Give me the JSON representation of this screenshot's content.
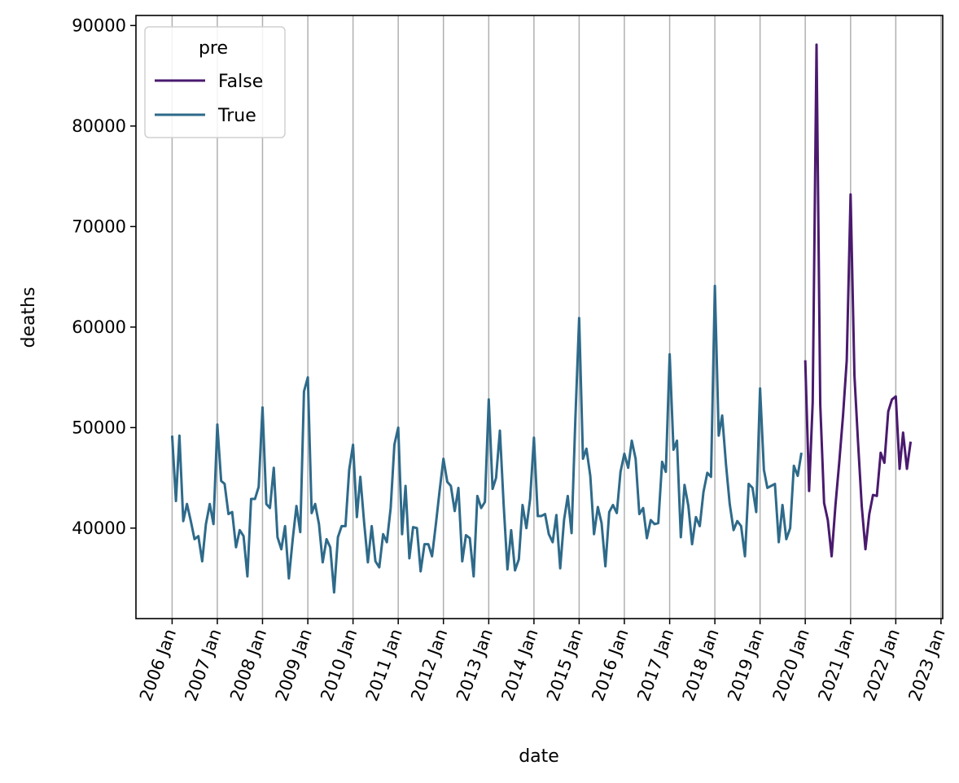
{
  "chart_data": {
    "type": "line",
    "xlabel": "date",
    "ylabel": "deaths",
    "xlim": [
      "2005-03-15",
      "2023-01-15"
    ],
    "ylim": [
      31000,
      91000
    ],
    "yticks": [
      40000,
      50000,
      60000,
      70000,
      80000,
      90000
    ],
    "xticks": [
      {
        "date": "2006-01-01",
        "label": "2006 Jan"
      },
      {
        "date": "2007-01-01",
        "label": "2007 Jan"
      },
      {
        "date": "2008-01-01",
        "label": "2008 Jan"
      },
      {
        "date": "2009-01-01",
        "label": "2009 Jan"
      },
      {
        "date": "2010-01-01",
        "label": "2010 Jan"
      },
      {
        "date": "2011-01-01",
        "label": "2011 Jan"
      },
      {
        "date": "2012-01-01",
        "label": "2012 Jan"
      },
      {
        "date": "2013-01-01",
        "label": "2013 Jan"
      },
      {
        "date": "2014-01-01",
        "label": "2014 Jan"
      },
      {
        "date": "2015-01-01",
        "label": "2015 Jan"
      },
      {
        "date": "2016-01-01",
        "label": "2016 Jan"
      },
      {
        "date": "2017-01-01",
        "label": "2017 Jan"
      },
      {
        "date": "2018-01-01",
        "label": "2018 Jan"
      },
      {
        "date": "2019-01-01",
        "label": "2019 Jan"
      },
      {
        "date": "2020-01-01",
        "label": "2020 Jan"
      },
      {
        "date": "2021-01-01",
        "label": "2021 Jan"
      },
      {
        "date": "2022-01-01",
        "label": "2022 Jan"
      },
      {
        "date": "2023-01-01",
        "label": "2023 Jan"
      }
    ],
    "x_grid": true,
    "y_grid": false,
    "legend": {
      "title": "pre",
      "placement": "upper-left"
    },
    "series": [
      {
        "name": "False",
        "color": "#4a1a6e",
        "start": "2020-01",
        "values": [
          56700,
          43700,
          52500,
          88100,
          52300,
          42500,
          40800,
          37200,
          42300,
          46500,
          51200,
          56700,
          73200,
          55200,
          48800,
          42200,
          37900,
          41400,
          43300,
          43200,
          47500,
          46500,
          51600,
          52800,
          53100,
          45900,
          49500,
          45900,
          48600
        ]
      },
      {
        "name": "True",
        "color": "#2e6a8a",
        "start": "2006-01",
        "values": [
          49200,
          42700,
          49200,
          40700,
          42400,
          40700,
          38900,
          39200,
          36700,
          40400,
          42400,
          40400,
          50300,
          44700,
          44400,
          41400,
          41600,
          38100,
          39800,
          39200,
          35200,
          42900,
          42900,
          44100,
          52000,
          42400,
          42000,
          46000,
          39100,
          37900,
          40200,
          35000,
          38900,
          42200,
          39600,
          53600,
          55000,
          41500,
          42400,
          40400,
          36600,
          38900,
          38100,
          33600,
          39100,
          40200,
          40200,
          45800,
          48300,
          41100,
          45100,
          40500,
          36600,
          40200,
          36700,
          36100,
          39400,
          38600,
          42000,
          48300,
          50000,
          39400,
          44200,
          37000,
          40100,
          40000,
          35700,
          38400,
          38400,
          37200,
          40400,
          43700,
          46900,
          44600,
          44200,
          41700,
          44000,
          36700,
          39300,
          39000,
          35200,
          43200,
          42000,
          42600,
          52800,
          43900,
          45000,
          49700,
          42400,
          35900,
          39800,
          35800,
          36900,
          42300,
          40000,
          42900,
          49000,
          41200,
          41200,
          41400,
          39400,
          38600,
          41300,
          36000,
          40800,
          43200,
          39500,
          50700,
          60900,
          46900,
          47900,
          45200,
          39400,
          42100,
          40500,
          36200,
          41600,
          42300,
          41500,
          45600,
          47400,
          46000,
          48700,
          46900,
          41400,
          42000,
          39000,
          40800,
          40400,
          40500,
          46600,
          45600,
          57300,
          47800,
          48700,
          39100,
          44300,
          42200,
          38400,
          41100,
          40200,
          43600,
          45500,
          45100,
          64100,
          49200,
          51200,
          46300,
          42400,
          39800,
          40700,
          40200,
          37200,
          44400,
          44000,
          41600,
          53900,
          45800,
          44000,
          44200,
          44400,
          38600,
          42300,
          38900,
          40000,
          46200,
          45200,
          47500
        ]
      }
    ]
  }
}
